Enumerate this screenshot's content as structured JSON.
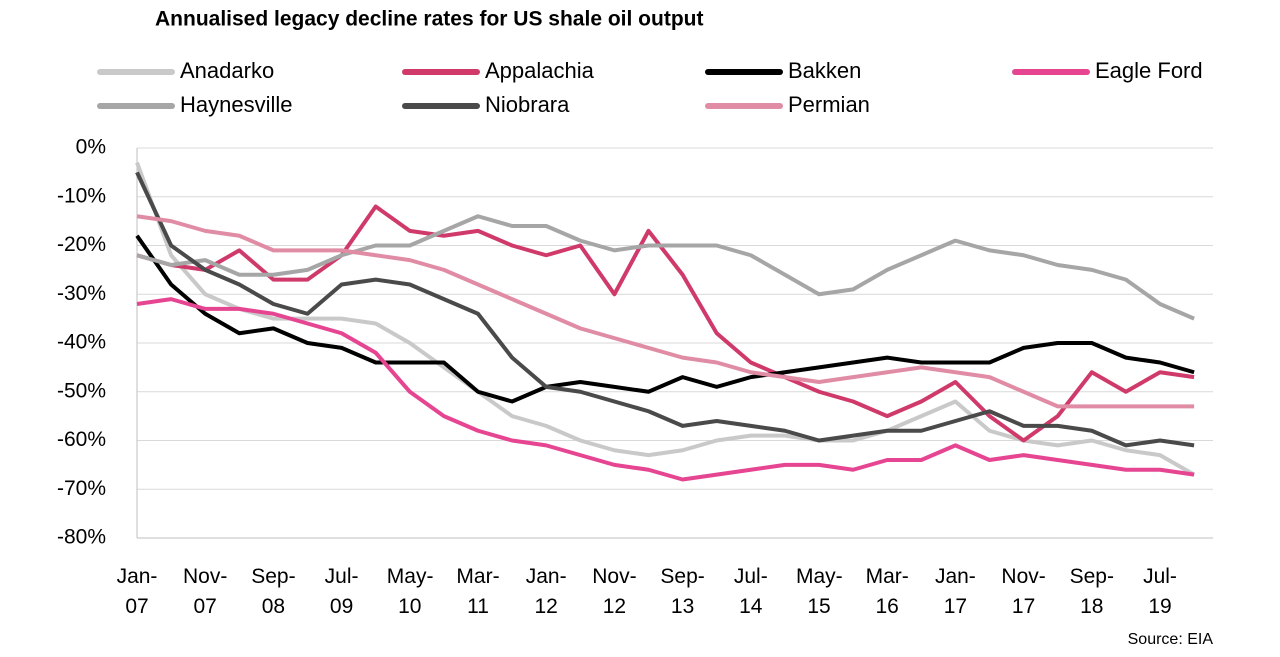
{
  "chart_data": {
    "type": "line",
    "title": "Annualised legacy decline rates for US shale oil output",
    "note": "Source: EIA",
    "categories": [
      "Jan-07",
      null,
      "Nov-07",
      null,
      "Sep-08",
      null,
      "Jul-09",
      null,
      "May-10",
      null,
      "Mar-11",
      null,
      "Jan-12",
      null,
      "Nov-12",
      null,
      "Sep-13",
      null,
      "Jul-14",
      null,
      "May-15",
      null,
      "Mar-16",
      null,
      "Jan-17",
      null,
      "Nov-17",
      null,
      "Sep-18",
      null,
      "Jul-19",
      null
    ],
    "ylim": [
      -80,
      0
    ],
    "yticks": [
      {
        "value": -80,
        "label": "-80%"
      },
      {
        "value": -70,
        "label": "-70%"
      },
      {
        "value": -60,
        "label": "-60%"
      },
      {
        "value": -50,
        "label": "-50%"
      },
      {
        "value": -40,
        "label": "-40%"
      },
      {
        "value": -30,
        "label": "-30%"
      },
      {
        "value": -20,
        "label": "-20%"
      },
      {
        "value": -10,
        "label": "-10%"
      },
      {
        "value": 0,
        "label": "0%"
      }
    ],
    "grid": true,
    "legend": "top",
    "series": [
      {
        "name": "Anadarko",
        "color": "#c9c9c9",
        "values": [
          -3,
          -22,
          -30,
          -33,
          -35,
          -35,
          -35,
          -36,
          -40,
          -45,
          -50,
          -55,
          -57,
          -60,
          -62,
          -63,
          -62,
          -60,
          -59,
          -59,
          -60,
          -60,
          -58,
          -55,
          -52,
          -58,
          -60,
          -61,
          -60,
          -62,
          -63,
          -67
        ]
      },
      {
        "name": "Appalachia",
        "color": "#d03a6b",
        "values": [
          -22,
          -24,
          -25,
          -21,
          -27,
          -27,
          -22,
          -12,
          -17,
          -18,
          -17,
          -20,
          -22,
          -20,
          -30,
          -17,
          -26,
          -38,
          -44,
          -47,
          -50,
          -52,
          -55,
          -52,
          -48,
          -55,
          -60,
          -55,
          -46,
          -50,
          -46,
          -47
        ]
      },
      {
        "name": "Bakken",
        "color": "#000000",
        "values": [
          -18,
          -28,
          -34,
          -38,
          -37,
          -40,
          -41,
          -44,
          -44,
          -44,
          -50,
          -52,
          -49,
          -48,
          -49,
          -50,
          -47,
          -49,
          -47,
          -46,
          -45,
          -44,
          -43,
          -44,
          -44,
          -44,
          -41,
          -40,
          -40,
          -43,
          -44,
          -46
        ]
      },
      {
        "name": "Eagle Ford",
        "color": "#e64592",
        "values": [
          -32,
          -31,
          -33,
          -33,
          -34,
          -36,
          -38,
          -42,
          -50,
          -55,
          -58,
          -60,
          -61,
          -63,
          -65,
          -66,
          -68,
          -67,
          -66,
          -65,
          -65,
          -66,
          -64,
          -64,
          -61,
          -64,
          -63,
          -64,
          -65,
          -66,
          -66,
          -67
        ]
      },
      {
        "name": "Haynesville",
        "color": "#a6a6a6",
        "values": [
          -22,
          -24,
          -23,
          -26,
          -26,
          -25,
          -22,
          -20,
          -20,
          -17,
          -14,
          -16,
          -16,
          -19,
          -21,
          -20,
          -20,
          -20,
          -22,
          -26,
          -30,
          -29,
          -25,
          -22,
          -19,
          -21,
          -22,
          -24,
          -25,
          -27,
          -32,
          -35
        ]
      },
      {
        "name": "Niobrara",
        "color": "#4a4a4a",
        "values": [
          -5,
          -20,
          -25,
          -28,
          -32,
          -34,
          -28,
          -27,
          -28,
          -31,
          -34,
          -43,
          -49,
          -50,
          -52,
          -54,
          -57,
          -56,
          -57,
          -58,
          -60,
          -59,
          -58,
          -58,
          -56,
          -54,
          -57,
          -57,
          -58,
          -61,
          -60,
          -61
        ]
      },
      {
        "name": "Permian",
        "color": "#e08ca5",
        "values": [
          -14,
          -15,
          -17,
          -18,
          -21,
          -21,
          -21,
          -22,
          -23,
          -25,
          -28,
          -31,
          -34,
          -37,
          -39,
          -41,
          -43,
          -44,
          -46,
          -47,
          -48,
          -47,
          -46,
          -45,
          -46,
          -47,
          -50,
          -53,
          -53,
          -53,
          -53,
          -53
        ]
      }
    ]
  }
}
